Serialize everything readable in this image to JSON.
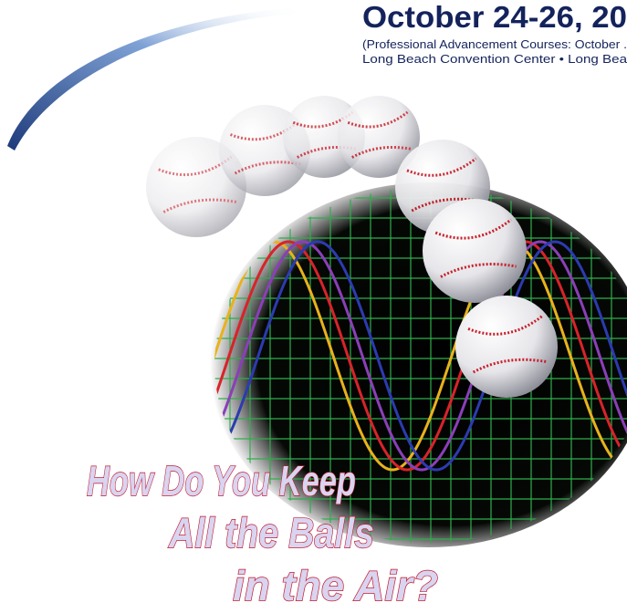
{
  "header": {
    "title": "October 24-26, 20",
    "subtitle_lines": [
      "(Professional Advancement Courses: October .",
      "Long Beach Convention Center • Long Bea"
    ]
  },
  "headline": {
    "lines": [
      "How Do You Keep",
      "All the Balls",
      "in the Air?"
    ]
  }
}
